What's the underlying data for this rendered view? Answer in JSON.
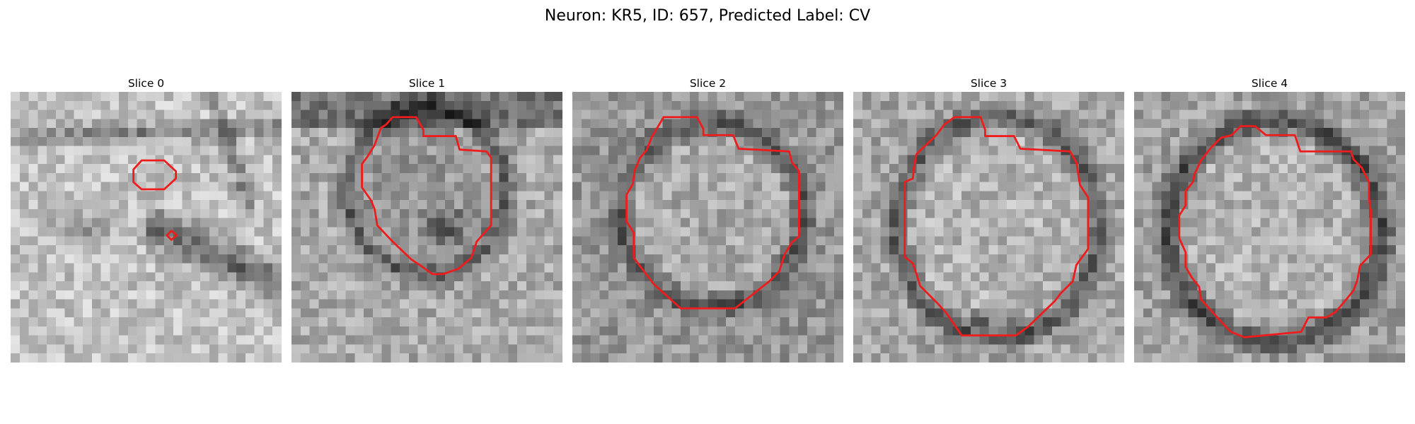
{
  "title": "Neuron: KR5, ID: 657, Predicted Label: CV",
  "panels": [
    {
      "title": "Slice 0",
      "image": "electron-micrograph-slice",
      "contour": "red-segmentation-outline"
    },
    {
      "title": "Slice 1",
      "image": "electron-micrograph-slice",
      "contour": "red-segmentation-outline"
    },
    {
      "title": "Slice 2",
      "image": "electron-micrograph-slice",
      "contour": "red-segmentation-outline"
    },
    {
      "title": "Slice 3",
      "image": "electron-micrograph-slice",
      "contour": "red-segmentation-outline"
    },
    {
      "title": "Slice 4",
      "image": "electron-micrograph-slice",
      "contour": "red-segmentation-outline"
    }
  ],
  "colors": {
    "contour": "#ee1c1c",
    "background": "#ffffff"
  }
}
